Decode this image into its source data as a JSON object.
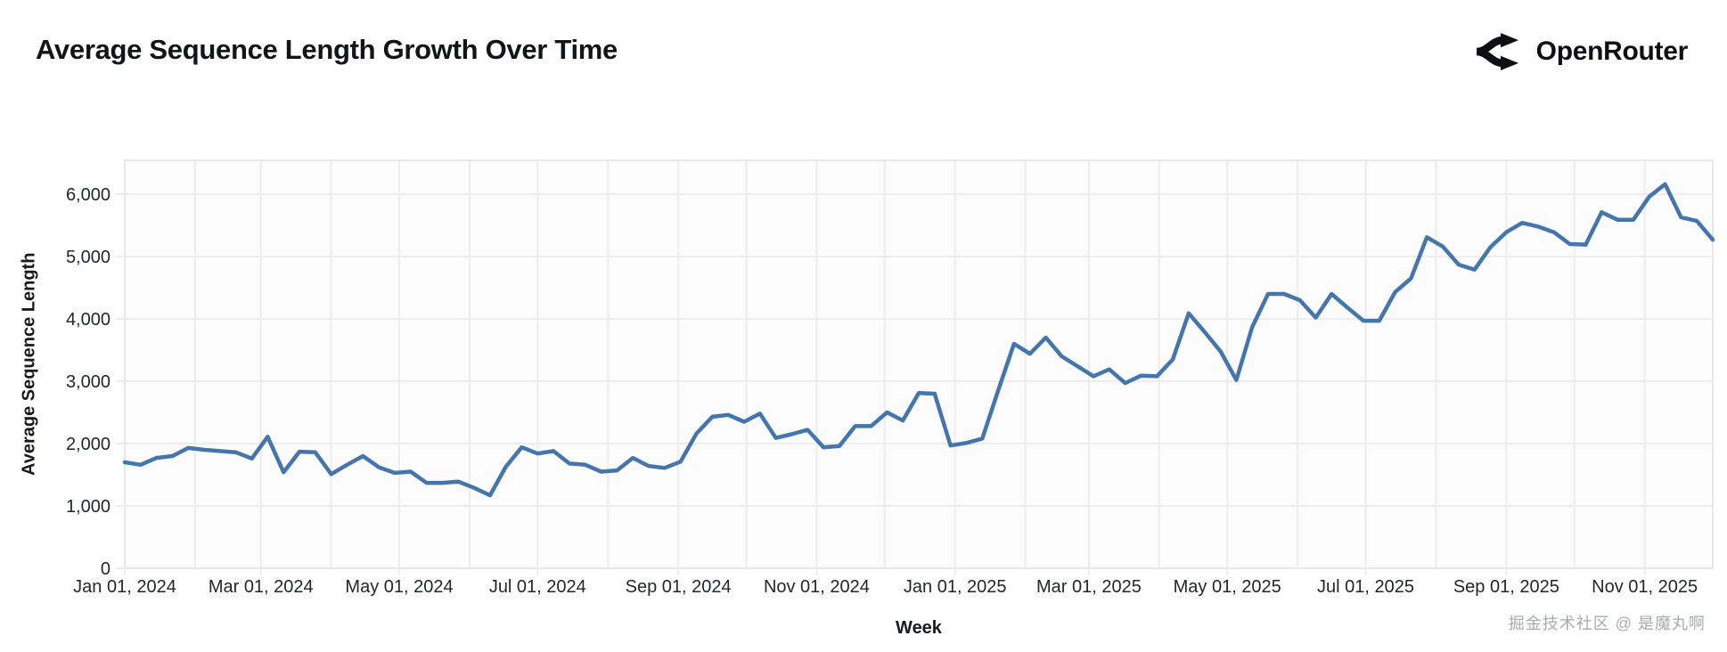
{
  "header": {
    "title": "Average Sequence Length Growth Over Time",
    "logo_text": "OpenRouter"
  },
  "watermark": "掘金技术社区 @ 是魔丸啊",
  "chart_data": {
    "type": "line",
    "title": "Average Sequence Length Growth Over Time",
    "xlabel": "Week",
    "ylabel": "Average Sequence Length",
    "grid": true,
    "legend": false,
    "line_color": "#4476ad",
    "gridline_color": "#ededee",
    "x_start_date": "2024-01-01",
    "x_end_date": "2025-12-01",
    "x_interval_days": 7,
    "ylim": [
      0,
      6530
    ],
    "y_ticks": [
      {
        "label": "0",
        "value": 0
      },
      {
        "label": "1,000",
        "value": 1000
      },
      {
        "label": "2,000",
        "value": 2000
      },
      {
        "label": "3,000",
        "value": 3000
      },
      {
        "label": "4,000",
        "value": 4000
      },
      {
        "label": "5,000",
        "value": 5000
      },
      {
        "label": "6,000",
        "value": 6000
      }
    ],
    "x_ticks": [
      {
        "label": "Jan 01, 2024",
        "day": 0
      },
      {
        "label": "Mar 01, 2024",
        "day": 60
      },
      {
        "label": "May 01, 2024",
        "day": 121
      },
      {
        "label": "Jul 01, 2024",
        "day": 182
      },
      {
        "label": "Sep 01, 2024",
        "day": 244
      },
      {
        "label": "Nov 01, 2024",
        "day": 305
      },
      {
        "label": "Jan 01, 2025",
        "day": 366
      },
      {
        "label": "Mar 01, 2025",
        "day": 425
      },
      {
        "label": "May 01, 2025",
        "day": 486
      },
      {
        "label": "Jul 01, 2025",
        "day": 547
      },
      {
        "label": "Sep 01, 2025",
        "day": 609
      },
      {
        "label": "Nov 01, 2025",
        "day": 670
      }
    ],
    "month_gridline_day_offsets": [
      0,
      31,
      60,
      91,
      121,
      152,
      182,
      213,
      244,
      274,
      305,
      335,
      366,
      397,
      425,
      456,
      486,
      517,
      547,
      578,
      609,
      639,
      670,
      700
    ],
    "series": [
      {
        "name": "Average Sequence Length",
        "color": "#4476ad",
        "values": [
          1700,
          1660,
          1770,
          1800,
          1930,
          1900,
          1880,
          1860,
          1760,
          2110,
          1540,
          1870,
          1860,
          1510,
          1660,
          1800,
          1620,
          1530,
          1550,
          1370,
          1370,
          1390,
          1290,
          1170,
          1630,
          1940,
          1840,
          1880,
          1680,
          1660,
          1550,
          1570,
          1770,
          1640,
          1610,
          1710,
          2160,
          2430,
          2460,
          2350,
          2480,
          2090,
          2150,
          2220,
          1940,
          1960,
          2280,
          2280,
          2500,
          2370,
          2810,
          2800,
          1970,
          2010,
          2080,
          2850,
          3600,
          3440,
          3700,
          3400,
          3240,
          3080,
          3190,
          2970,
          3090,
          3080,
          3350,
          4090,
          3790,
          3480,
          3020,
          3870,
          4400,
          4400,
          4300,
          4020,
          4400,
          4180,
          3970,
          3970,
          4430,
          4650,
          5310,
          5160,
          4870,
          4790,
          5150,
          5390,
          5540,
          5480,
          5390,
          5200,
          5190,
          5710,
          5590,
          5590,
          5960,
          6160,
          5630,
          5570,
          5270
        ]
      }
    ]
  }
}
